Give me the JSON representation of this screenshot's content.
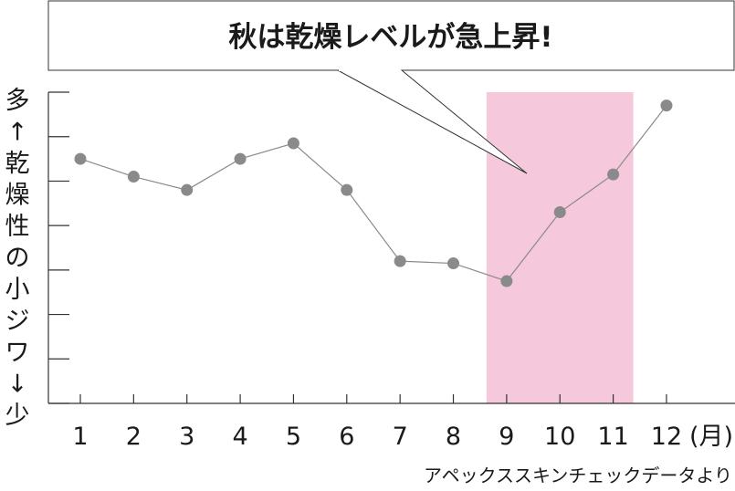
{
  "chart_data": {
    "type": "line",
    "callout": "秋は乾燥レベルが急上昇!",
    "ylabel": [
      "多",
      "↑",
      "乾",
      "燥",
      "性",
      "の",
      "小",
      "ジ",
      "ワ",
      "↓",
      "少"
    ],
    "categories": [
      "1",
      "2",
      "3",
      "4",
      "5",
      "6",
      "7",
      "8",
      "9",
      "10",
      "11",
      "12"
    ],
    "x_unit": "(月)",
    "values": [
      5.5,
      5.1,
      4.8,
      5.5,
      5.85,
      4.8,
      3.2,
      3.15,
      2.75,
      4.3,
      5.15,
      6.7
    ],
    "ylim": [
      0,
      7
    ],
    "grid": false,
    "highlight": {
      "from_month": 9,
      "to_month": 11,
      "color": "#f5c8dc"
    },
    "line_color": "#8a8a8a",
    "marker_color": "#8a8a8a",
    "source": "アペックススキンチェックデータより"
  }
}
